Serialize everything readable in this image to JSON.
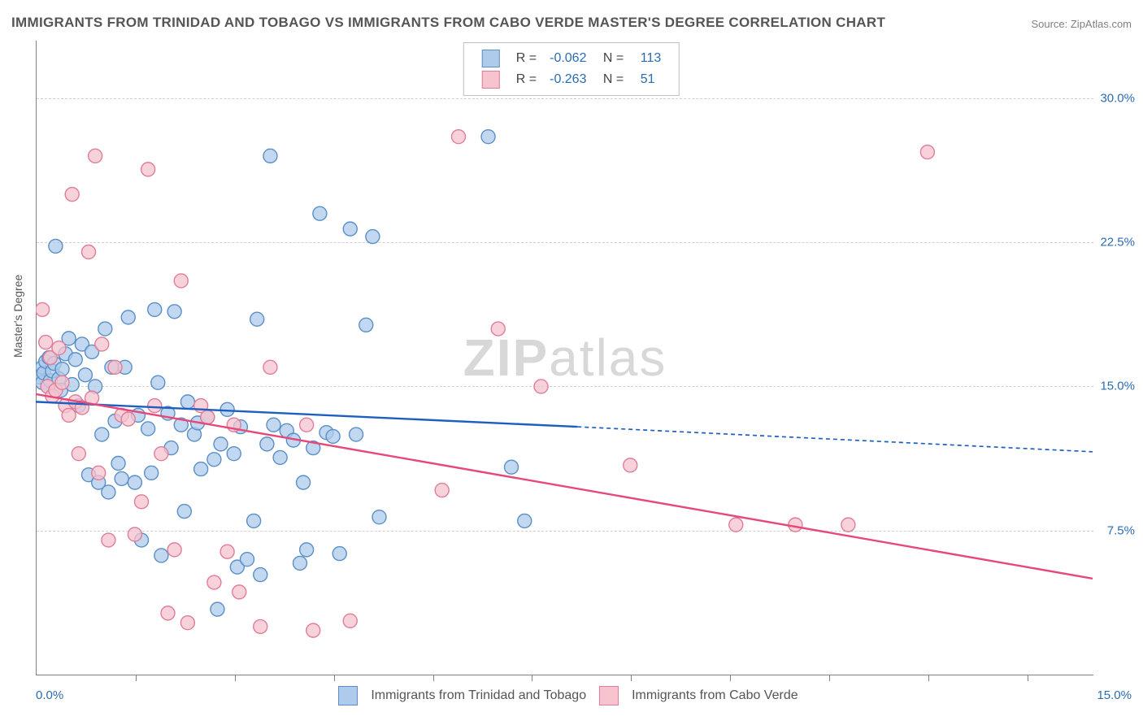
{
  "title": "IMMIGRANTS FROM TRINIDAD AND TOBAGO VS IMMIGRANTS FROM CABO VERDE MASTER'S DEGREE CORRELATION CHART",
  "source": "Source: ZipAtlas.com",
  "watermark_bold": "ZIP",
  "watermark_thin": "atlas",
  "ylabel": "Master's Degree",
  "chart": {
    "type": "scatter",
    "background_color": "#ffffff",
    "grid_color": "#d0d0d0",
    "axis_color": "#808080",
    "xlim": [
      0,
      16
    ],
    "ylim": [
      0,
      33
    ],
    "y_ticks": [
      {
        "v": 7.5,
        "label": "7.5%"
      },
      {
        "v": 15.0,
        "label": "15.0%"
      },
      {
        "v": 22.5,
        "label": "22.5%"
      },
      {
        "v": 30.0,
        "label": "30.0%"
      }
    ],
    "x_tick_labels": [
      {
        "v": 0,
        "label": "0.0%"
      },
      {
        "v": 15,
        "label": "15.0%"
      }
    ],
    "x_tick_marks": [
      1.5,
      3.0,
      4.5,
      6.0,
      7.5,
      9.0,
      10.5,
      12.0,
      13.5,
      15.0
    ],
    "marker_radius": 8.5,
    "marker_stroke_width": 1.4,
    "series": [
      {
        "name": "Immigrants from Trinidad and Tobago",
        "fill": "#aecbeb",
        "stroke": "#5b8fc7",
        "R": "-0.062",
        "N": "113",
        "trend": {
          "x1": 0,
          "y1": 14.2,
          "x2": 8.2,
          "y2": 12.9,
          "ext_x": 16,
          "ext_y": 11.6,
          "color": "#1d5fbf",
          "width": 2.4,
          "dash": "5,4"
        },
        "data": [
          [
            0.05,
            15.5
          ],
          [
            0.1,
            16.0
          ],
          [
            0.1,
            15.2
          ],
          [
            0.12,
            15.7
          ],
          [
            0.15,
            16.3
          ],
          [
            0.18,
            15.0
          ],
          [
            0.2,
            16.5
          ],
          [
            0.22,
            15.3
          ],
          [
            0.25,
            15.8
          ],
          [
            0.28,
            16.2
          ],
          [
            0.3,
            22.3
          ],
          [
            0.35,
            15.4
          ],
          [
            0.38,
            14.8
          ],
          [
            0.4,
            15.9
          ],
          [
            0.45,
            16.7
          ],
          [
            0.5,
            17.5
          ],
          [
            0.55,
            15.1
          ],
          [
            0.6,
            16.4
          ],
          [
            0.65,
            14.0
          ],
          [
            0.7,
            17.2
          ],
          [
            0.75,
            15.6
          ],
          [
            0.8,
            10.4
          ],
          [
            0.85,
            16.8
          ],
          [
            0.9,
            15.0
          ],
          [
            0.95,
            10.0
          ],
          [
            1.0,
            12.5
          ],
          [
            1.05,
            18.0
          ],
          [
            1.1,
            9.5
          ],
          [
            1.15,
            16.0
          ],
          [
            1.2,
            13.2
          ],
          [
            1.25,
            11.0
          ],
          [
            1.3,
            10.2
          ],
          [
            1.35,
            16.0
          ],
          [
            1.4,
            18.6
          ],
          [
            1.5,
            10.0
          ],
          [
            1.55,
            13.5
          ],
          [
            1.6,
            7.0
          ],
          [
            1.7,
            12.8
          ],
          [
            1.75,
            10.5
          ],
          [
            1.8,
            19.0
          ],
          [
            1.85,
            15.2
          ],
          [
            1.9,
            6.2
          ],
          [
            2.0,
            13.6
          ],
          [
            2.05,
            11.8
          ],
          [
            2.1,
            18.9
          ],
          [
            2.2,
            13.0
          ],
          [
            2.25,
            8.5
          ],
          [
            2.3,
            14.2
          ],
          [
            2.4,
            12.5
          ],
          [
            2.45,
            13.1
          ],
          [
            2.5,
            10.7
          ],
          [
            2.6,
            13.4
          ],
          [
            2.7,
            11.2
          ],
          [
            2.75,
            3.4
          ],
          [
            2.8,
            12.0
          ],
          [
            2.9,
            13.8
          ],
          [
            3.0,
            11.5
          ],
          [
            3.05,
            5.6
          ],
          [
            3.1,
            12.9
          ],
          [
            3.2,
            6.0
          ],
          [
            3.3,
            8.0
          ],
          [
            3.35,
            18.5
          ],
          [
            3.4,
            5.2
          ],
          [
            3.5,
            12.0
          ],
          [
            3.55,
            27.0
          ],
          [
            3.6,
            13.0
          ],
          [
            3.7,
            11.3
          ],
          [
            3.8,
            12.7
          ],
          [
            3.9,
            12.2
          ],
          [
            4.0,
            5.8
          ],
          [
            4.05,
            10.0
          ],
          [
            4.1,
            6.5
          ],
          [
            4.2,
            11.8
          ],
          [
            4.3,
            24.0
          ],
          [
            4.4,
            12.6
          ],
          [
            4.5,
            12.4
          ],
          [
            4.6,
            6.3
          ],
          [
            4.76,
            23.2
          ],
          [
            4.85,
            12.5
          ],
          [
            5.0,
            18.2
          ],
          [
            5.1,
            22.8
          ],
          [
            5.2,
            8.2
          ],
          [
            6.85,
            28.0
          ],
          [
            7.2,
            10.8
          ],
          [
            7.4,
            8.0
          ]
        ]
      },
      {
        "name": "Immigrants from Cabo Verde",
        "fill": "#f6c3cf",
        "stroke": "#e07d98",
        "R": "-0.263",
        "N": "51",
        "trend": {
          "x1": 0,
          "y1": 14.6,
          "x2": 16,
          "y2": 5.0,
          "color": "#e6487a",
          "width": 2.4
        },
        "data": [
          [
            0.1,
            19.0
          ],
          [
            0.15,
            17.3
          ],
          [
            0.18,
            15.0
          ],
          [
            0.22,
            16.5
          ],
          [
            0.25,
            14.5
          ],
          [
            0.3,
            14.8
          ],
          [
            0.35,
            17.0
          ],
          [
            0.4,
            15.2
          ],
          [
            0.45,
            14.0
          ],
          [
            0.5,
            13.5
          ],
          [
            0.55,
            25.0
          ],
          [
            0.6,
            14.2
          ],
          [
            0.65,
            11.5
          ],
          [
            0.7,
            13.9
          ],
          [
            0.8,
            22.0
          ],
          [
            0.85,
            14.4
          ],
          [
            0.9,
            27.0
          ],
          [
            0.95,
            10.5
          ],
          [
            1.0,
            17.2
          ],
          [
            1.1,
            7.0
          ],
          [
            1.2,
            16.0
          ],
          [
            1.3,
            13.5
          ],
          [
            1.4,
            13.3
          ],
          [
            1.5,
            7.3
          ],
          [
            1.6,
            9.0
          ],
          [
            1.7,
            26.3
          ],
          [
            1.8,
            14.0
          ],
          [
            1.9,
            11.5
          ],
          [
            2.0,
            3.2
          ],
          [
            2.1,
            6.5
          ],
          [
            2.2,
            20.5
          ],
          [
            2.3,
            2.7
          ],
          [
            2.5,
            14.0
          ],
          [
            2.6,
            13.4
          ],
          [
            2.7,
            4.8
          ],
          [
            2.9,
            6.4
          ],
          [
            3.0,
            13.0
          ],
          [
            3.08,
            4.3
          ],
          [
            3.4,
            2.5
          ],
          [
            3.55,
            16.0
          ],
          [
            4.1,
            13.0
          ],
          [
            4.2,
            2.3
          ],
          [
            4.76,
            2.8
          ],
          [
            6.15,
            9.6
          ],
          [
            6.4,
            28.0
          ],
          [
            7.0,
            18.0
          ],
          [
            7.65,
            15.0
          ],
          [
            9.0,
            10.9
          ],
          [
            10.6,
            7.8
          ],
          [
            11.5,
            7.8
          ],
          [
            12.3,
            7.8
          ],
          [
            13.5,
            27.2
          ]
        ]
      }
    ]
  }
}
